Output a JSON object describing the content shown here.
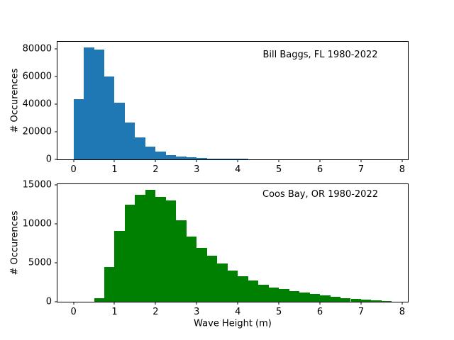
{
  "figure": {
    "background": "#ffffff",
    "frame_color": "#000000"
  },
  "chart_data": [
    {
      "type": "bar",
      "subtype": "histogram",
      "panel": "top",
      "annotation": "Bill Baggs, FL 1980-2022",
      "ylabel": "# Occurences",
      "xlabel": "",
      "color": "#1f77b4",
      "bin_start": 0.0,
      "bin_width": 0.25,
      "values": [
        43500,
        81000,
        79500,
        60000,
        41200,
        26900,
        16000,
        9200,
        5500,
        3300,
        2000,
        1400,
        1000,
        700,
        500,
        400,
        300
      ],
      "yticks": [
        0,
        20000,
        40000,
        60000,
        80000
      ],
      "xticks": [
        0,
        1,
        2,
        3,
        4,
        5,
        6,
        7,
        8
      ],
      "xlim": [
        -0.39,
        8.14
      ],
      "ylim": [
        0,
        85050
      ],
      "legend": "none",
      "grid": false
    },
    {
      "type": "bar",
      "subtype": "histogram",
      "panel": "bottom",
      "annotation": "Coos Bay, OR 1980-2022",
      "ylabel": "# Occurences",
      "xlabel": "Wave Height (m)",
      "color": "#008000",
      "bin_start": 0.5,
      "bin_width": 0.25,
      "values": [
        500,
        4400,
        9100,
        12400,
        13700,
        14300,
        13400,
        13000,
        10400,
        8300,
        6900,
        5900,
        4900,
        4000,
        3300,
        2700,
        2150,
        1800,
        1600,
        1400,
        1200,
        1000,
        800,
        620,
        480,
        340,
        250,
        180,
        120
      ],
      "yticks": [
        0,
        5000,
        10000,
        15000
      ],
      "xticks": [
        0,
        1,
        2,
        3,
        4,
        5,
        6,
        7,
        8
      ],
      "xlim": [
        -0.39,
        8.14
      ],
      "ylim": [
        0,
        15050
      ],
      "legend": "none",
      "grid": false
    }
  ]
}
